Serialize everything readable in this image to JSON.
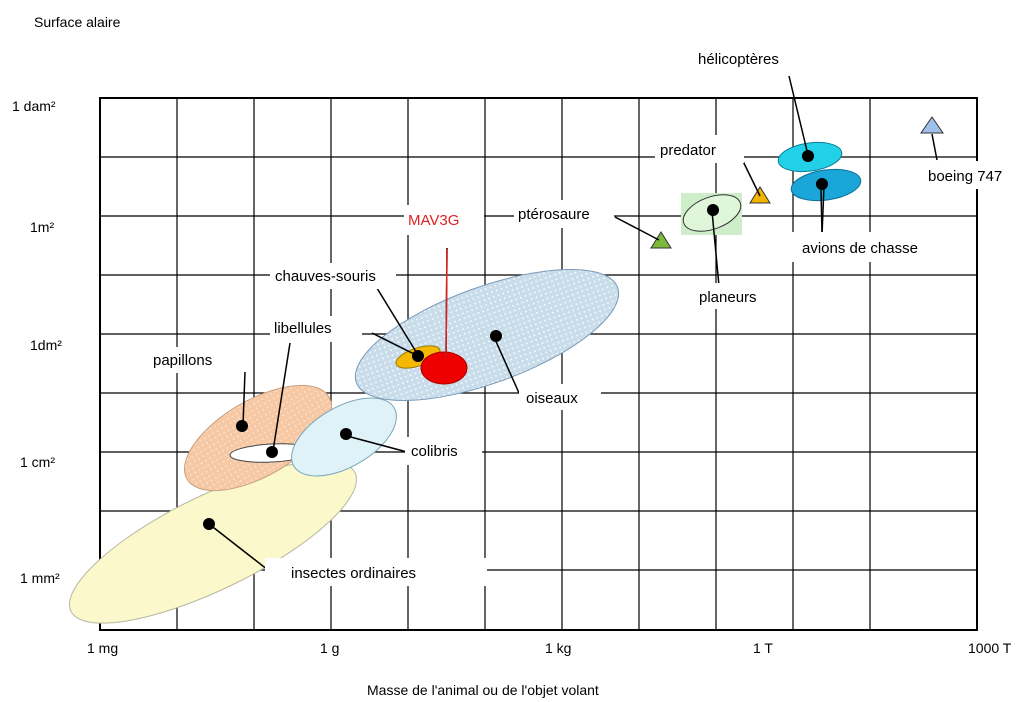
{
  "chart_data": {
    "type": "scatter",
    "title": "",
    "ylabel": "Surface alaire",
    "xlabel": "Masse de l'animal ou de l'objet volant",
    "x_ticks": [
      "1 mg",
      "1 g",
      "1 kg",
      "1 T",
      "1000 T"
    ],
    "y_ticks": [
      "1 dam²",
      "1m²",
      "1dm²",
      "1 cm²",
      "1 mm²"
    ],
    "scale": "log-log",
    "grid": true,
    "regions": [
      {
        "name": "insectes ordinaires",
        "color": "#fbf8cc"
      },
      {
        "name": "papillons",
        "color": "#f6c8a4"
      },
      {
        "name": "libellules",
        "color": "#ffffff"
      },
      {
        "name": "colibris",
        "color": "#dff2f8"
      },
      {
        "name": "oiseaux",
        "color": "#c8dcea"
      },
      {
        "name": "chauves-souris",
        "color": "#f5b800"
      },
      {
        "name": "MAV3G",
        "color": "#ee0000"
      },
      {
        "name": "planeurs",
        "color": "#cdeec8"
      },
      {
        "name": "avions de chasse",
        "color": "#1aa6d8"
      },
      {
        "name": "hélicoptères",
        "color": "#22d0e8"
      }
    ],
    "points": [
      {
        "name": "ptérosaure",
        "color": "#7cb83a"
      },
      {
        "name": "predator",
        "color": "#f2b400"
      },
      {
        "name": "boeing 747",
        "color": "#9fc0e8"
      }
    ]
  }
}
